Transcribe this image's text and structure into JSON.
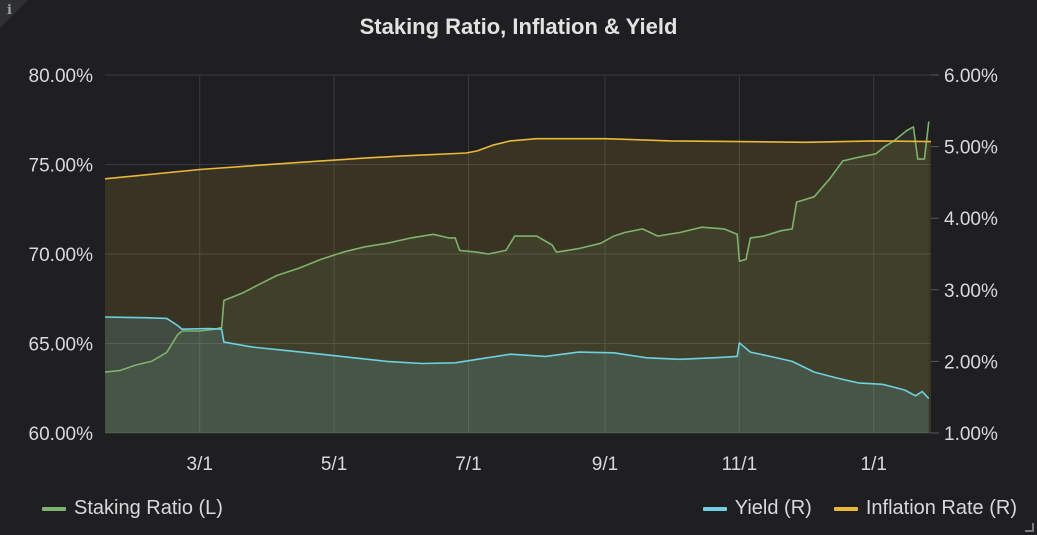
{
  "panel": {
    "info_icon": "info-icon",
    "info_glyph": "i",
    "title": "Staking Ratio, Inflation & Yield"
  },
  "chart_data": {
    "type": "line",
    "title": "Staking Ratio, Inflation & Yield",
    "x_range": [
      "2020-01-18",
      "2021-01-27"
    ],
    "x_ticks": [
      {
        "date": "2020-03-01",
        "label": "3/1"
      },
      {
        "date": "2020-05-01",
        "label": "5/1"
      },
      {
        "date": "2020-07-01",
        "label": "7/1"
      },
      {
        "date": "2020-09-01",
        "label": "9/1"
      },
      {
        "date": "2020-11-01",
        "label": "11/1"
      },
      {
        "date": "2021-01-01",
        "label": "1/1"
      }
    ],
    "y_left": {
      "min": 60,
      "max": 80,
      "ticks": [
        60,
        65,
        70,
        75,
        80
      ],
      "tick_labels": [
        "60.00%",
        "65.00%",
        "70.00%",
        "75.00%",
        "80.00%"
      ]
    },
    "y_right": {
      "min": 1,
      "max": 6,
      "ticks": [
        1,
        2,
        3,
        4,
        5,
        6
      ],
      "tick_labels": [
        "1.00%",
        "2.00%",
        "3.00%",
        "4.00%",
        "5.00%",
        "6.00%"
      ]
    },
    "grid": true,
    "legend_placement": "bottom",
    "series": [
      {
        "name": "Staking Ratio (L)",
        "axis": "left",
        "color": "#7eb26d",
        "points": [
          [
            "2020-01-18",
            63.4
          ],
          [
            "2020-01-25",
            63.5
          ],
          [
            "2020-02-01",
            63.8
          ],
          [
            "2020-02-08",
            64.0
          ],
          [
            "2020-02-15",
            64.5
          ],
          [
            "2020-02-20",
            65.5
          ],
          [
            "2020-02-22",
            65.7
          ],
          [
            "2020-03-01",
            65.7
          ],
          [
            "2020-03-08",
            65.8
          ],
          [
            "2020-03-11",
            65.9
          ],
          [
            "2020-03-12",
            67.4
          ],
          [
            "2020-03-20",
            67.8
          ],
          [
            "2020-03-28",
            68.3
          ],
          [
            "2020-04-05",
            68.8
          ],
          [
            "2020-04-15",
            69.2
          ],
          [
            "2020-04-25",
            69.7
          ],
          [
            "2020-05-05",
            70.1
          ],
          [
            "2020-05-15",
            70.4
          ],
          [
            "2020-05-25",
            70.6
          ],
          [
            "2020-06-05",
            70.9
          ],
          [
            "2020-06-15",
            71.1
          ],
          [
            "2020-06-22",
            70.9
          ],
          [
            "2020-06-25",
            70.9
          ],
          [
            "2020-06-27",
            70.2
          ],
          [
            "2020-07-05",
            70.1
          ],
          [
            "2020-07-10",
            70.0
          ],
          [
            "2020-07-18",
            70.2
          ],
          [
            "2020-07-20",
            70.6
          ],
          [
            "2020-07-22",
            71.0
          ],
          [
            "2020-08-01",
            71.0
          ],
          [
            "2020-08-08",
            70.5
          ],
          [
            "2020-08-10",
            70.1
          ],
          [
            "2020-08-20",
            70.3
          ],
          [
            "2020-08-30",
            70.6
          ],
          [
            "2020-09-05",
            71.0
          ],
          [
            "2020-09-10",
            71.2
          ],
          [
            "2020-09-18",
            71.4
          ],
          [
            "2020-09-25",
            71.0
          ],
          [
            "2020-10-05",
            71.2
          ],
          [
            "2020-10-15",
            71.5
          ],
          [
            "2020-10-25",
            71.4
          ],
          [
            "2020-10-31",
            71.1
          ],
          [
            "2020-11-01",
            69.6
          ],
          [
            "2020-11-04",
            69.7
          ],
          [
            "2020-11-06",
            70.9
          ],
          [
            "2020-11-12",
            71.0
          ],
          [
            "2020-11-20",
            71.3
          ],
          [
            "2020-11-25",
            71.4
          ],
          [
            "2020-11-27",
            72.9
          ],
          [
            "2020-12-05",
            73.2
          ],
          [
            "2020-12-12",
            74.2
          ],
          [
            "2020-12-18",
            75.2
          ],
          [
            "2020-12-25",
            75.4
          ],
          [
            "2021-01-02",
            75.6
          ],
          [
            "2021-01-06",
            76.0
          ],
          [
            "2021-01-10",
            76.3
          ],
          [
            "2021-01-16",
            76.9
          ],
          [
            "2021-01-19",
            77.1
          ],
          [
            "2021-01-21",
            75.3
          ],
          [
            "2021-01-24",
            75.3
          ],
          [
            "2021-01-26",
            77.4
          ]
        ]
      },
      {
        "name": "Yield (R)",
        "axis": "right",
        "color": "#6ed0e0",
        "points": [
          [
            "2020-01-18",
            2.62
          ],
          [
            "2020-02-05",
            2.61
          ],
          [
            "2020-02-15",
            2.6
          ],
          [
            "2020-02-20",
            2.5
          ],
          [
            "2020-02-22",
            2.45
          ],
          [
            "2020-03-05",
            2.46
          ],
          [
            "2020-03-11",
            2.45
          ],
          [
            "2020-03-12",
            2.27
          ],
          [
            "2020-03-25",
            2.2
          ],
          [
            "2020-04-10",
            2.15
          ],
          [
            "2020-04-25",
            2.1
          ],
          [
            "2020-05-10",
            2.05
          ],
          [
            "2020-05-25",
            2.0
          ],
          [
            "2020-06-10",
            1.97
          ],
          [
            "2020-06-25",
            1.98
          ],
          [
            "2020-07-05",
            2.03
          ],
          [
            "2020-07-20",
            2.1
          ],
          [
            "2020-08-05",
            2.07
          ],
          [
            "2020-08-20",
            2.13
          ],
          [
            "2020-09-05",
            2.12
          ],
          [
            "2020-09-20",
            2.05
          ],
          [
            "2020-10-05",
            2.03
          ],
          [
            "2020-10-20",
            2.05
          ],
          [
            "2020-10-31",
            2.07
          ],
          [
            "2020-11-01",
            2.26
          ],
          [
            "2020-11-06",
            2.13
          ],
          [
            "2020-11-15",
            2.07
          ],
          [
            "2020-11-25",
            2.0
          ],
          [
            "2020-12-05",
            1.85
          ],
          [
            "2020-12-15",
            1.77
          ],
          [
            "2020-12-25",
            1.7
          ],
          [
            "2021-01-05",
            1.68
          ],
          [
            "2021-01-15",
            1.6
          ],
          [
            "2021-01-20",
            1.52
          ],
          [
            "2021-01-23",
            1.58
          ],
          [
            "2021-01-26",
            1.48
          ]
        ]
      },
      {
        "name": "Inflation Rate (R)",
        "axis": "right",
        "color": "#eab839",
        "points": [
          [
            "2020-01-18",
            4.55
          ],
          [
            "2020-03-01",
            4.68
          ],
          [
            "2020-04-15",
            4.78
          ],
          [
            "2020-05-15",
            4.84
          ],
          [
            "2020-06-01",
            4.87
          ],
          [
            "2020-06-30",
            4.91
          ],
          [
            "2020-07-05",
            4.94
          ],
          [
            "2020-07-12",
            5.02
          ],
          [
            "2020-07-20",
            5.08
          ],
          [
            "2020-08-01",
            5.11
          ],
          [
            "2020-09-01",
            5.11
          ],
          [
            "2020-10-01",
            5.08
          ],
          [
            "2020-11-01",
            5.07
          ],
          [
            "2020-12-01",
            5.06
          ],
          [
            "2021-01-01",
            5.08
          ],
          [
            "2021-01-27",
            5.07
          ]
        ]
      }
    ]
  }
}
